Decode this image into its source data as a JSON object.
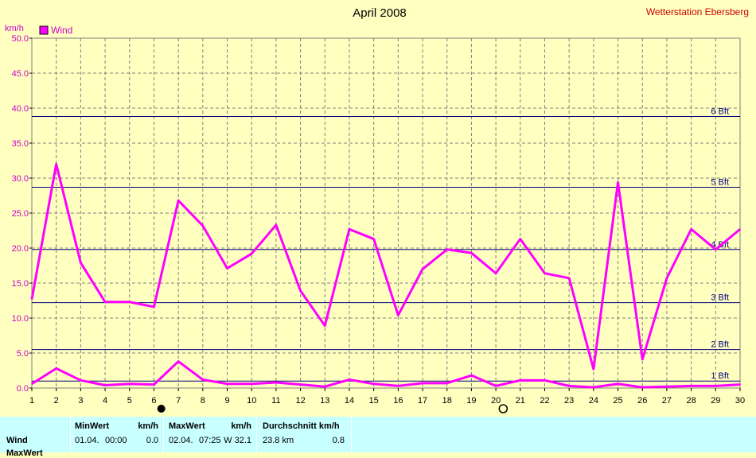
{
  "header": {
    "title": "April 2008",
    "station": "Wetterstation Ebersberg",
    "unit": "km/h"
  },
  "legend": {
    "label": "Wind",
    "color": "#ff00ff"
  },
  "chart_data": {
    "type": "line",
    "title": "April 2008",
    "ylabel": "km/h",
    "xlabel": "",
    "x": [
      1,
      2,
      3,
      4,
      5,
      6,
      7,
      8,
      9,
      10,
      11,
      12,
      13,
      14,
      15,
      16,
      17,
      18,
      19,
      20,
      21,
      22,
      23,
      24,
      25,
      26,
      27,
      28,
      29,
      30
    ],
    "xlim": [
      1,
      30
    ],
    "ylim": [
      0,
      50
    ],
    "yticks": [
      "0.0",
      "5.0",
      "10.0",
      "15.0",
      "20.0",
      "25.0",
      "30.0",
      "35.0",
      "40.0",
      "45.0",
      "50.0"
    ],
    "grid": true,
    "legend_position": "top-left",
    "series": [
      {
        "name": "Wind",
        "color": "#ff00ff",
        "values": [
          12.7,
          32.0,
          17.9,
          12.3,
          12.3,
          11.6,
          26.8,
          23.2,
          17.1,
          19.2,
          23.3,
          13.9,
          8.9,
          22.7,
          21.3,
          10.4,
          17.0,
          19.8,
          19.3,
          16.4,
          21.3,
          16.4,
          15.7,
          2.7,
          29.4,
          4.1,
          15.7,
          22.7,
          19.8,
          22.7
        ]
      },
      {
        "name": "",
        "color": "#ff00ff",
        "values": [
          0.6,
          2.8,
          1.1,
          0.4,
          0.6,
          0.5,
          3.8,
          1.2,
          0.6,
          0.6,
          0.8,
          0.5,
          0.2,
          1.2,
          0.6,
          0.3,
          0.7,
          0.7,
          1.8,
          0.3,
          1.1,
          1.1,
          0.3,
          0.1,
          0.6,
          0.1,
          0.2,
          0.3,
          0.3,
          0.5
        ]
      }
    ],
    "beaufort_lines": [
      {
        "label": "1 Bft",
        "value": 1.0
      },
      {
        "label": "2 Bft",
        "value": 5.5
      },
      {
        "label": "3 Bft",
        "value": 12.2
      },
      {
        "label": "4 Bft",
        "value": 19.8
      },
      {
        "label": "5 Bft",
        "value": 28.7
      },
      {
        "label": "6 Bft",
        "value": 38.8
      }
    ],
    "moon_phases": [
      {
        "day": 6,
        "phase": "new"
      },
      {
        "day": 20,
        "phase": "full"
      }
    ]
  },
  "stats": {
    "row_label": "Wind",
    "row_label_2": "MaxWert",
    "min": {
      "header": "MinWert",
      "unit": "km/h",
      "date": "01.04.",
      "time": "00:00",
      "value": "0.0"
    },
    "max": {
      "header": "MaxWert",
      "unit": "km/h",
      "date": "02.04.",
      "time": "07:25",
      "value": "W 32.1"
    },
    "avg": {
      "header": "Durchschnitt km/h",
      "distance": "23.8 km",
      "value": "0.8"
    }
  }
}
